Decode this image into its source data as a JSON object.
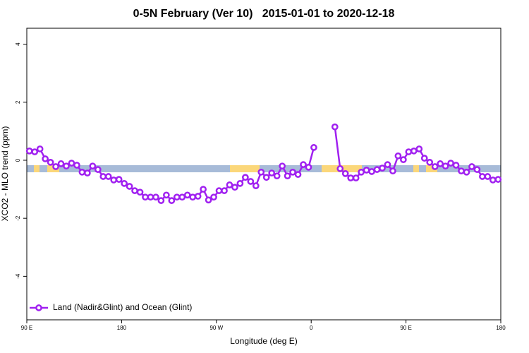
{
  "chart_data": {
    "type": "line",
    "title": "0-5N February (Ver 10)   2015-01-01 to 2020-12-18",
    "xlabel": "Longitude (deg E)",
    "ylabel": "XCO2 - MLO trend (ppm)",
    "x": [
      92.5,
      97.5,
      102.5,
      107.5,
      112.5,
      117.5,
      122.5,
      127.5,
      132.5,
      137.5,
      142.5,
      147.5,
      152.5,
      157.5,
      162.5,
      167.5,
      172.5,
      177.5,
      182.5,
      187.5,
      192.5,
      197.5,
      202.5,
      207.5,
      212.5,
      217.5,
      222.5,
      227.5,
      232.5,
      237.5,
      242.5,
      247.5,
      252.5,
      257.5,
      262.5,
      267.5,
      272.5,
      277.5,
      282.5,
      287.5,
      292.5,
      297.5,
      302.5,
      307.5,
      312.5,
      317.5,
      322.5,
      327.5,
      332.5,
      337.5,
      342.5,
      347.5,
      352.5,
      357.5,
      362.5,
      367.5,
      372.5,
      377.5,
      382.5,
      387.5,
      392.5,
      397.5,
      402.5,
      407.5,
      412.5,
      417.5,
      422.5,
      427.5,
      432.5,
      437.5,
      442.5,
      447.5,
      452.5,
      457.5,
      462.5,
      467.5,
      472.5,
      477.5,
      482.5,
      487.5,
      492.5,
      497.5,
      502.5,
      507.5,
      512.5,
      517.5,
      522.5,
      527.5,
      532.5,
      537.5
    ],
    "series": [
      {
        "name": "Land (Nadir&Glint) and Ocean (Glint)",
        "color": "#a020f0",
        "values": [
          0.32,
          0.29,
          0.39,
          0.05,
          -0.07,
          -0.22,
          -0.12,
          -0.2,
          -0.1,
          -0.17,
          -0.41,
          -0.44,
          -0.2,
          -0.32,
          -0.56,
          -0.56,
          -0.68,
          -0.66,
          -0.8,
          -0.9,
          -1.05,
          -1.1,
          -1.27,
          -1.27,
          -1.27,
          -1.39,
          -1.2,
          -1.39,
          -1.27,
          -1.27,
          -1.2,
          -1.27,
          -1.24,
          -1.0,
          -1.37,
          -1.27,
          -1.05,
          -1.05,
          -0.85,
          -0.93,
          -0.8,
          -0.59,
          -0.73,
          -0.88,
          -0.41,
          -0.59,
          -0.44,
          -0.54,
          -0.2,
          -0.54,
          -0.41,
          -0.49,
          -0.15,
          -0.24,
          0.44,
          null,
          null,
          null,
          1.15,
          -0.29,
          -0.46,
          -0.61,
          -0.61,
          -0.41,
          -0.34,
          -0.39,
          -0.32,
          -0.27,
          -0.15,
          -0.37,
          0.15,
          0.02,
          0.29,
          0.32,
          0.39,
          0.07,
          -0.07,
          -0.22,
          -0.12,
          -0.2,
          -0.1,
          -0.17,
          -0.37,
          -0.41,
          -0.22,
          -0.32,
          -0.56,
          -0.56,
          -0.68,
          -0.66
        ]
      }
    ],
    "xlim": [
      90,
      540
    ],
    "ylim": [
      -5.5,
      4.55
    ],
    "xticks": [
      {
        "value": 90,
        "label": "90 E"
      },
      180,
      {
        "value": 270,
        "label": "90 W"
      },
      {
        "value": 360,
        "label": "0"
      },
      {
        "value": 450,
        "label": "90 E"
      },
      {
        "value": 540,
        "label": "180"
      }
    ],
    "yticks": [
      -4,
      -2,
      0,
      2,
      4
    ],
    "legend": "bottomleft"
  }
}
